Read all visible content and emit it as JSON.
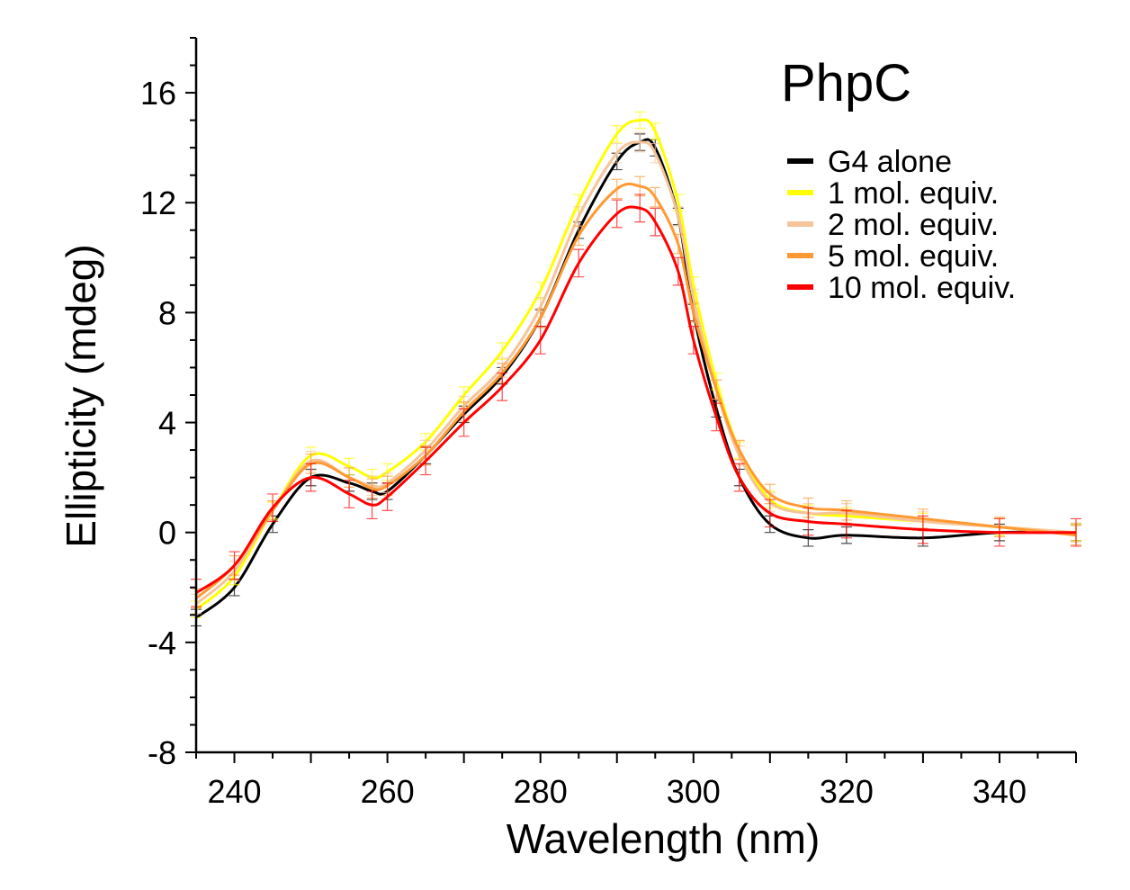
{
  "chart_data": {
    "type": "line",
    "title": "PhpC",
    "xlabel": "Wavelength (nm)",
    "ylabel": "Ellipticity (mdeg)",
    "xlim": [
      235,
      350
    ],
    "ylim": [
      -8,
      18
    ],
    "xticks": [
      240,
      260,
      280,
      300,
      320,
      340
    ],
    "yticks": [
      -8,
      -4,
      0,
      4,
      8,
      12,
      16
    ],
    "grid": false,
    "legend_position": "top-right",
    "x": [
      235,
      240,
      245,
      250,
      255,
      258,
      260,
      265,
      270,
      275,
      280,
      285,
      290,
      293,
      295,
      298,
      300,
      303,
      306,
      310,
      315,
      320,
      330,
      340,
      350
    ],
    "series": [
      {
        "name": "G4 alone",
        "color": "#000000",
        "error": 0.3,
        "values": [
          -3.1,
          -2.0,
          0.3,
          2.0,
          1.8,
          1.5,
          1.5,
          2.8,
          4.3,
          5.7,
          7.8,
          11.0,
          13.5,
          14.2,
          14.0,
          11.5,
          8.0,
          4.5,
          2.0,
          0.3,
          -0.2,
          -0.1,
          -0.2,
          0.0,
          0.0
        ]
      },
      {
        "name": "1 mol. equiv.",
        "color": "#ffff00",
        "error": 0.3,
        "values": [
          -2.8,
          -1.6,
          0.8,
          2.8,
          2.4,
          2.0,
          2.2,
          3.3,
          5.0,
          6.6,
          8.8,
          12.0,
          14.5,
          15.0,
          14.6,
          12.0,
          9.0,
          5.5,
          3.0,
          1.2,
          0.7,
          0.6,
          0.4,
          0.2,
          0.0
        ]
      },
      {
        "name": "2 mol. equiv.",
        "color": "#f5c49a",
        "error": 0.35,
        "values": [
          -2.6,
          -1.4,
          0.8,
          2.6,
          2.0,
          1.7,
          1.8,
          3.0,
          4.6,
          6.0,
          8.2,
          11.5,
          13.8,
          14.2,
          13.8,
          11.5,
          8.5,
          5.2,
          2.8,
          1.1,
          0.7,
          0.7,
          0.4,
          0.2,
          0.0
        ]
      },
      {
        "name": "5 mol. equiv.",
        "color": "#ff9933",
        "error": 0.35,
        "values": [
          -2.4,
          -1.2,
          0.8,
          2.5,
          2.0,
          1.6,
          1.7,
          2.8,
          4.4,
          5.8,
          7.8,
          10.8,
          12.5,
          12.6,
          12.2,
          10.5,
          8.0,
          5.2,
          3.0,
          1.4,
          0.9,
          0.8,
          0.5,
          0.2,
          -0.1
        ]
      },
      {
        "name": "10 mol. equiv.",
        "color": "#ff0000",
        "error": 0.5,
        "values": [
          -2.2,
          -1.2,
          0.9,
          2.0,
          1.4,
          1.0,
          1.3,
          2.6,
          4.0,
          5.3,
          7.0,
          9.8,
          11.6,
          11.8,
          11.3,
          9.5,
          7.0,
          4.2,
          2.0,
          0.7,
          0.4,
          0.3,
          0.1,
          0.0,
          0.0
        ]
      }
    ]
  }
}
